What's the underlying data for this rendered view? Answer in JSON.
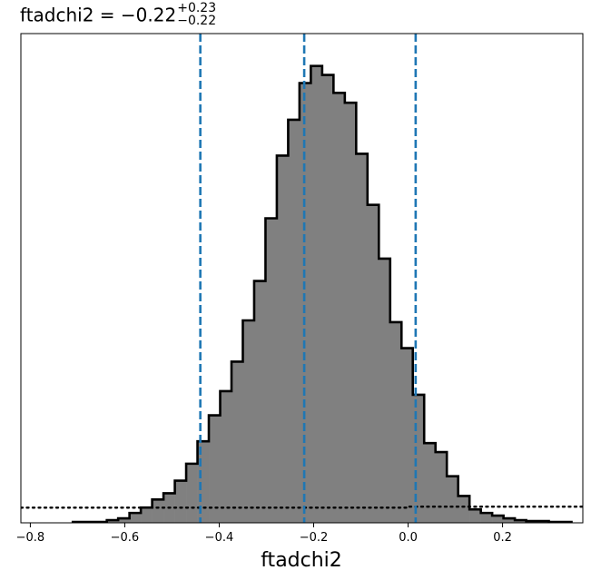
{
  "title": {
    "name": "ftadchi2",
    "equals": " = ",
    "value": "−0.22",
    "plus": "+0.23",
    "minus": "−0.22"
  },
  "chart_data": {
    "type": "histogram",
    "xlabel": "ftadchi2",
    "ylabel": "",
    "xlim": [
      -0.82,
      0.37
    ],
    "ylim": [
      0,
      1.0
    ],
    "xticks": [
      {
        "value": -0.8,
        "label": "−0.8"
      },
      {
        "value": -0.6,
        "label": "−0.6"
      },
      {
        "value": -0.4,
        "label": "−0.4"
      },
      {
        "value": -0.2,
        "label": "−0.2"
      },
      {
        "value": 0.0,
        "label": "0.0"
      },
      {
        "value": 0.2,
        "label": "0.2"
      }
    ],
    "bin_edges": [
      -0.71,
      -0.686,
      -0.662,
      -0.638,
      -0.614,
      -0.59,
      -0.566,
      -0.542,
      -0.518,
      -0.494,
      -0.47,
      -0.446,
      -0.422,
      -0.398,
      -0.374,
      -0.35,
      -0.326,
      -0.302,
      -0.278,
      -0.254,
      -0.23,
      -0.206,
      -0.182,
      -0.158,
      -0.134,
      -0.11,
      -0.086,
      -0.062,
      -0.038,
      -0.014,
      0.01,
      0.034,
      0.058,
      0.082,
      0.106,
      0.13,
      0.154,
      0.178,
      0.202,
      0.226,
      0.25,
      0.274,
      0.298,
      0.322,
      0.346
    ],
    "counts": [
      0.0019,
      0.0019,
      0.0019,
      0.0057,
      0.0094,
      0.0208,
      0.0321,
      0.0491,
      0.0623,
      0.0887,
      0.1245,
      0.1717,
      0.2264,
      0.2774,
      0.3396,
      0.4264,
      0.5094,
      0.6415,
      0.7736,
      0.8491,
      0.9264,
      0.9623,
      0.9434,
      0.9057,
      0.8849,
      0.7774,
      0.6698,
      0.5566,
      0.4226,
      0.3679,
      0.2698,
      0.1679,
      0.1491,
      0.0981,
      0.0566,
      0.0283,
      0.0208,
      0.0151,
      0.0094,
      0.0057,
      0.0038,
      0.0038,
      0.0019,
      0.0019
    ],
    "prior_level": 0.032,
    "prior_level_right": 0.034,
    "prior_step_x": 0.0,
    "quantiles": [
      -0.44,
      -0.22,
      0.016
    ],
    "colors": {
      "fill": "#808080",
      "edge": "#000000",
      "quantile_line": "#1f77b4",
      "prior_line": "#000000"
    },
    "grid": false,
    "legend": "none"
  }
}
